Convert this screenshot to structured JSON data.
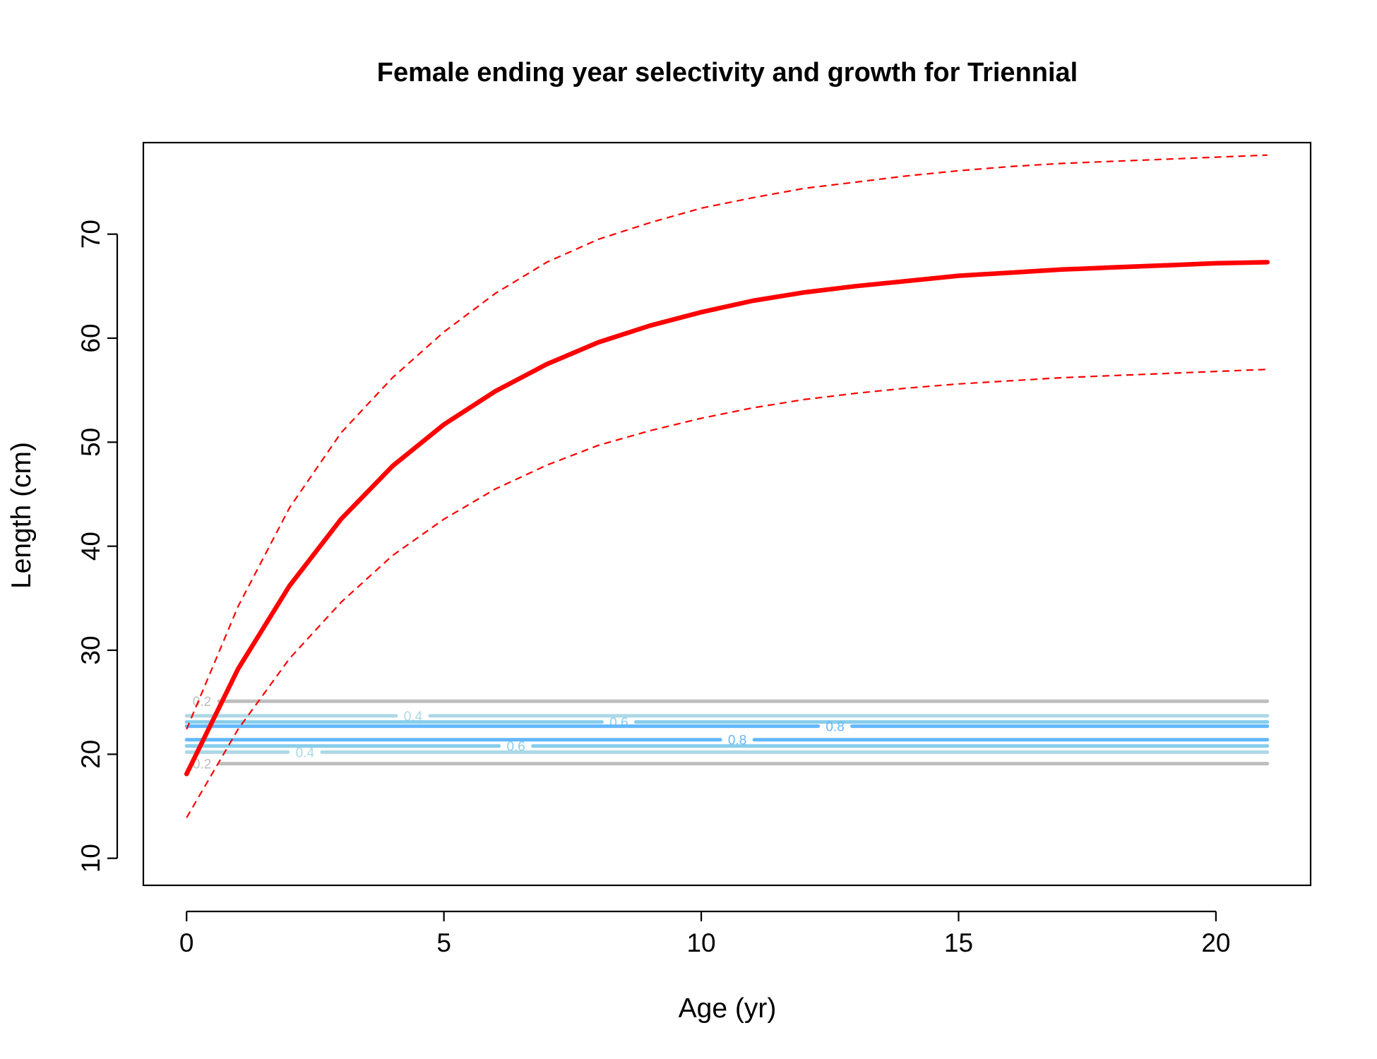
{
  "chart_data": {
    "type": "line",
    "title": "Female ending year selectivity and growth for Triennial",
    "xlabel": "Age (yr)",
    "ylabel": "Length (cm)",
    "xlim": [
      -0.84,
      21.84
    ],
    "ylim": [
      7.4,
      78.8
    ],
    "xticks": [
      0,
      5,
      10,
      15,
      20
    ],
    "yticks": [
      10,
      20,
      30,
      40,
      50,
      60,
      70
    ],
    "growth": {
      "x": [
        0,
        1,
        2,
        3,
        4,
        5,
        6,
        7,
        8,
        9,
        10,
        11,
        12,
        13,
        14,
        15,
        16,
        17,
        18,
        19,
        20,
        21
      ],
      "mean": [
        18.1,
        28.2,
        36.2,
        42.6,
        47.7,
        51.7,
        54.9,
        57.5,
        59.6,
        61.2,
        62.5,
        63.6,
        64.4,
        65.0,
        65.5,
        66.0,
        66.3,
        66.6,
        66.8,
        67.0,
        67.2,
        67.3
      ],
      "upper": [
        22.4,
        34.2,
        43.7,
        50.9,
        56.2,
        60.6,
        64.3,
        67.3,
        69.5,
        71.1,
        72.5,
        73.5,
        74.4,
        75.0,
        75.6,
        76.1,
        76.5,
        76.8,
        77.0,
        77.2,
        77.4,
        77.6
      ],
      "lower": [
        13.9,
        22.4,
        29.2,
        34.6,
        39.1,
        42.6,
        45.5,
        47.8,
        49.7,
        51.1,
        52.3,
        53.3,
        54.1,
        54.7,
        55.2,
        55.6,
        55.9,
        56.2,
        56.4,
        56.6,
        56.8,
        57.0
      ]
    },
    "selectivity_contours": [
      {
        "level": "0.2",
        "y": 25.1,
        "color": "#bebebe",
        "labels": [
          {
            "x": 0.3,
            "text": "0.2"
          }
        ]
      },
      {
        "level": "0.4",
        "y": 23.7,
        "color": "#add8e6",
        "labels": [
          {
            "x": 4.4,
            "text": "0.4"
          }
        ]
      },
      {
        "level": "0.6",
        "y": 23.1,
        "color": "#87ceeb",
        "labels": [
          {
            "x": 8.4,
            "text": "0.6"
          }
        ]
      },
      {
        "level": "0.8",
        "y": 22.7,
        "color": "#63b8ff",
        "labels": [
          {
            "x": 12.6,
            "text": "0.8"
          }
        ]
      },
      {
        "level": "0.8",
        "y": 21.4,
        "color": "#63b8ff",
        "labels": [
          {
            "x": 10.7,
            "text": "0.8"
          }
        ]
      },
      {
        "level": "0.6",
        "y": 20.8,
        "color": "#87ceeb",
        "labels": [
          {
            "x": 6.4,
            "text": "0.6"
          }
        ]
      },
      {
        "level": "0.4",
        "y": 20.2,
        "color": "#add8e6",
        "labels": [
          {
            "x": 2.3,
            "text": "0.4"
          }
        ]
      },
      {
        "level": "0.2",
        "y": 19.1,
        "color": "#bebebe",
        "labels": [
          {
            "x": 0.3,
            "text": "0.2"
          }
        ]
      }
    ],
    "growth_color": "#ff0000",
    "grid": false,
    "legend": "none"
  }
}
